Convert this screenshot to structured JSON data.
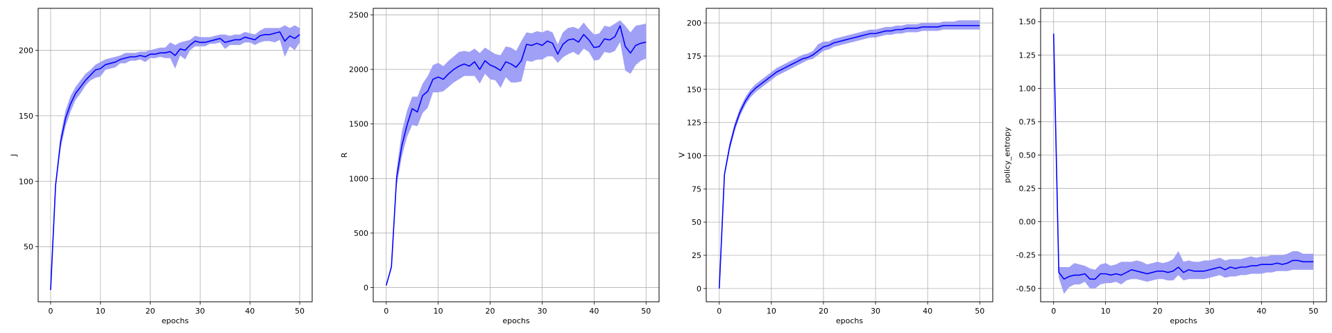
{
  "colors": {
    "line": "#0000ff",
    "band": "#9b9bf5",
    "grid": "#b0b0b0",
    "axis": "#000000"
  },
  "chart_data": [
    {
      "type": "line",
      "xlabel": "epochs",
      "ylabel": "J",
      "xlim": [
        -2.5,
        52.5
      ],
      "ylim": [
        8,
        232
      ],
      "xticks": [
        0,
        10,
        20,
        30,
        40,
        50
      ],
      "yticks": [
        50,
        100,
        150,
        200
      ],
      "grid": true,
      "x": [
        0,
        1,
        2,
        3,
        4,
        5,
        6,
        7,
        8,
        9,
        10,
        11,
        12,
        13,
        14,
        15,
        16,
        17,
        18,
        19,
        20,
        21,
        22,
        23,
        24,
        25,
        26,
        27,
        28,
        29,
        30,
        31,
        32,
        33,
        34,
        35,
        36,
        37,
        38,
        39,
        40,
        41,
        42,
        43,
        44,
        45,
        46,
        47,
        48,
        49,
        50
      ],
      "mean": [
        17,
        97,
        130,
        148,
        159,
        167,
        172,
        177,
        181,
        185,
        186,
        189,
        190,
        191,
        193,
        194,
        195,
        195,
        196,
        195,
        197,
        197,
        198,
        198,
        199,
        196,
        201,
        200,
        204,
        207,
        206,
        206,
        207,
        208,
        209,
        206,
        207,
        208,
        208,
        210,
        209,
        208,
        211,
        212,
        212,
        213,
        214,
        207,
        211,
        209,
        212
      ],
      "lower": [
        17,
        95,
        125,
        142,
        153,
        162,
        167,
        173,
        177,
        179,
        180,
        185,
        186,
        187,
        190,
        190,
        192,
        192,
        193,
        191,
        194,
        194,
        195,
        194,
        194,
        186,
        196,
        193,
        200,
        203,
        203,
        203,
        205,
        205,
        206,
        201,
        204,
        204,
        204,
        206,
        206,
        204,
        206,
        207,
        207,
        206,
        208,
        195,
        203,
        200,
        206
      ],
      "upper": [
        17,
        99,
        135,
        154,
        165,
        172,
        177,
        182,
        185,
        189,
        191,
        193,
        194,
        195,
        196,
        198,
        198,
        198,
        199,
        199,
        200,
        201,
        202,
        202,
        206,
        204,
        206,
        207,
        208,
        211,
        210,
        210,
        210,
        211,
        212,
        212,
        211,
        212,
        212,
        214,
        213,
        212,
        215,
        217,
        217,
        217,
        217,
        219,
        217,
        219,
        217
      ]
    },
    {
      "type": "line",
      "xlabel": "epochs",
      "ylabel": "R",
      "xlim": [
        -2.5,
        52.5
      ],
      "ylim": [
        -130,
        2560
      ],
      "xticks": [
        0,
        10,
        20,
        30,
        40,
        50
      ],
      "yticks": [
        0,
        500,
        1000,
        1500,
        2000,
        2500
      ],
      "grid": true,
      "x": [
        0,
        1,
        2,
        3,
        4,
        5,
        6,
        7,
        8,
        9,
        10,
        11,
        12,
        13,
        14,
        15,
        16,
        17,
        18,
        19,
        20,
        21,
        22,
        23,
        24,
        25,
        26,
        27,
        28,
        29,
        30,
        31,
        32,
        33,
        34,
        35,
        36,
        37,
        38,
        39,
        40,
        41,
        42,
        43,
        44,
        45,
        46,
        47,
        48,
        49,
        50
      ],
      "mean": [
        20,
        190,
        1010,
        1300,
        1490,
        1640,
        1610,
        1760,
        1800,
        1910,
        1930,
        1910,
        1960,
        2000,
        2030,
        2050,
        2030,
        2070,
        2000,
        2080,
        2040,
        2020,
        1990,
        2070,
        2050,
        2020,
        2080,
        2230,
        2220,
        2240,
        2220,
        2260,
        2240,
        2140,
        2230,
        2270,
        2280,
        2250,
        2320,
        2270,
        2200,
        2210,
        2280,
        2270,
        2300,
        2400,
        2210,
        2150,
        2220,
        2240,
        2250
      ],
      "lower": [
        20,
        170,
        930,
        1200,
        1380,
        1490,
        1480,
        1600,
        1650,
        1790,
        1790,
        1800,
        1840,
        1880,
        1910,
        1940,
        1940,
        1940,
        1870,
        1960,
        1910,
        1900,
        1830,
        1930,
        1880,
        1880,
        1890,
        2080,
        2070,
        2090,
        2090,
        2120,
        2120,
        2060,
        2110,
        2140,
        2160,
        2130,
        2190,
        2160,
        2080,
        2090,
        2160,
        2150,
        2170,
        2250,
        1990,
        1960,
        2040,
        2080,
        2100
      ],
      "upper": [
        20,
        210,
        1080,
        1430,
        1620,
        1750,
        1750,
        1870,
        1940,
        2040,
        2060,
        2030,
        2080,
        2120,
        2160,
        2170,
        2160,
        2190,
        2150,
        2200,
        2170,
        2140,
        2130,
        2210,
        2200,
        2170,
        2260,
        2340,
        2330,
        2350,
        2340,
        2360,
        2340,
        2230,
        2340,
        2380,
        2390,
        2370,
        2430,
        2370,
        2320,
        2330,
        2400,
        2390,
        2420,
        2450,
        2400,
        2340,
        2400,
        2410,
        2420
      ]
    },
    {
      "type": "line",
      "xlabel": "epochs",
      "ylabel": "V",
      "xlim": [
        -2.5,
        52.5
      ],
      "ylim": [
        -10,
        211
      ],
      "xticks": [
        0,
        10,
        20,
        30,
        40,
        50
      ],
      "yticks": [
        0,
        25,
        50,
        75,
        100,
        125,
        150,
        175,
        200
      ],
      "grid": true,
      "x": [
        0,
        1,
        2,
        3,
        4,
        5,
        6,
        7,
        8,
        9,
        10,
        11,
        12,
        13,
        14,
        15,
        16,
        17,
        18,
        19,
        20,
        21,
        22,
        23,
        24,
        25,
        26,
        27,
        28,
        29,
        30,
        31,
        32,
        33,
        34,
        35,
        36,
        37,
        38,
        39,
        40,
        41,
        42,
        43,
        44,
        45,
        46,
        47,
        48,
        49,
        50
      ],
      "mean": [
        0,
        86,
        107,
        122,
        133,
        141,
        147,
        151,
        154,
        157,
        160,
        163,
        165,
        167,
        169,
        171,
        173,
        174,
        176,
        179,
        182,
        183,
        185,
        186,
        187,
        188,
        189,
        190,
        191,
        192,
        192,
        193,
        194,
        194,
        195,
        195,
        196,
        196,
        196,
        197,
        197,
        197,
        197,
        198,
        198,
        198,
        198,
        198,
        198,
        198,
        198
      ],
      "lower": [
        0,
        84,
        104,
        119,
        130,
        138,
        144,
        148,
        151,
        154,
        157,
        160,
        162,
        164,
        166,
        168,
        170,
        172,
        173,
        176,
        179,
        180,
        182,
        183,
        184,
        185,
        186,
        187,
        188,
        189,
        189,
        190,
        191,
        191,
        192,
        192,
        193,
        193,
        193,
        194,
        194,
        194,
        194,
        195,
        195,
        195,
        195,
        195,
        195,
        195,
        195
      ],
      "upper": [
        0,
        88,
        110,
        125,
        136,
        144,
        150,
        154,
        157,
        160,
        163,
        166,
        168,
        170,
        172,
        174,
        176,
        177,
        179,
        184,
        186,
        186,
        188,
        189,
        190,
        191,
        192,
        193,
        194,
        195,
        195,
        196,
        197,
        197,
        198,
        198,
        199,
        199,
        199,
        200,
        200,
        200,
        200,
        201,
        201,
        201,
        202,
        202,
        202,
        202,
        202
      ]
    },
    {
      "type": "line",
      "xlabel": "epochs",
      "ylabel": "policy_entropy",
      "xlim": [
        -2.5,
        52.5
      ],
      "ylim": [
        -0.6,
        1.6
      ],
      "xticks": [
        0,
        10,
        20,
        30,
        40,
        50
      ],
      "yticks": [
        -0.5,
        -0.25,
        0.0,
        0.25,
        0.5,
        0.75,
        1.0,
        1.25,
        1.5
      ],
      "grid": true,
      "x": [
        0,
        1,
        2,
        3,
        4,
        5,
        6,
        7,
        8,
        9,
        10,
        11,
        12,
        13,
        14,
        15,
        16,
        17,
        18,
        19,
        20,
        21,
        22,
        23,
        24,
        25,
        26,
        27,
        28,
        29,
        30,
        31,
        32,
        33,
        34,
        35,
        36,
        37,
        38,
        39,
        40,
        41,
        42,
        43,
        44,
        45,
        46,
        47,
        48,
        49,
        50
      ],
      "mean": [
        1.41,
        -0.38,
        -0.43,
        -0.41,
        -0.4,
        -0.4,
        -0.39,
        -0.43,
        -0.43,
        -0.39,
        -0.39,
        -0.4,
        -0.39,
        -0.4,
        -0.38,
        -0.36,
        -0.37,
        -0.38,
        -0.39,
        -0.38,
        -0.37,
        -0.37,
        -0.38,
        -0.37,
        -0.34,
        -0.38,
        -0.36,
        -0.37,
        -0.37,
        -0.37,
        -0.36,
        -0.35,
        -0.34,
        -0.36,
        -0.34,
        -0.35,
        -0.34,
        -0.34,
        -0.33,
        -0.33,
        -0.32,
        -0.32,
        -0.32,
        -0.31,
        -0.32,
        -0.31,
        -0.29,
        -0.29,
        -0.3,
        -0.3,
        -0.3
      ],
      "lower": [
        1.41,
        -0.42,
        -0.54,
        -0.49,
        -0.47,
        -0.47,
        -0.45,
        -0.5,
        -0.5,
        -0.47,
        -0.46,
        -0.46,
        -0.45,
        -0.47,
        -0.44,
        -0.43,
        -0.43,
        -0.44,
        -0.45,
        -0.44,
        -0.43,
        -0.43,
        -0.44,
        -0.44,
        -0.4,
        -0.44,
        -0.43,
        -0.43,
        -0.43,
        -0.43,
        -0.42,
        -0.41,
        -0.4,
        -0.42,
        -0.41,
        -0.41,
        -0.4,
        -0.4,
        -0.39,
        -0.39,
        -0.39,
        -0.38,
        -0.38,
        -0.37,
        -0.37,
        -0.37,
        -0.36,
        -0.36,
        -0.36,
        -0.36,
        -0.36
      ],
      "upper": [
        1.41,
        -0.34,
        -0.34,
        -0.34,
        -0.31,
        -0.32,
        -0.33,
        -0.35,
        -0.36,
        -0.32,
        -0.31,
        -0.33,
        -0.32,
        -0.3,
        -0.3,
        -0.3,
        -0.29,
        -0.3,
        -0.32,
        -0.31,
        -0.3,
        -0.31,
        -0.3,
        -0.28,
        -0.22,
        -0.3,
        -0.29,
        -0.3,
        -0.3,
        -0.29,
        -0.29,
        -0.28,
        -0.27,
        -0.29,
        -0.28,
        -0.28,
        -0.28,
        -0.27,
        -0.26,
        -0.27,
        -0.26,
        -0.26,
        -0.25,
        -0.25,
        -0.25,
        -0.24,
        -0.22,
        -0.22,
        -0.24,
        -0.24,
        -0.24
      ]
    }
  ]
}
